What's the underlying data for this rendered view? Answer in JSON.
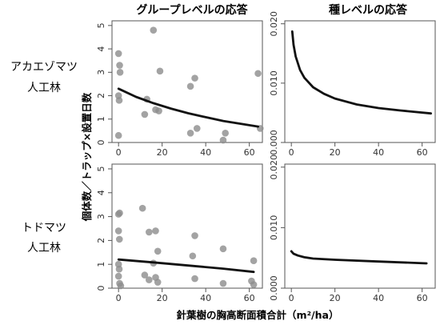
{
  "column_titles": [
    "グループレベルの応答",
    "種レベルの応答"
  ],
  "row_labels": [
    {
      "line1": "アカエゾマツ",
      "line2": "人工林"
    },
    {
      "line1": "トドマツ",
      "line2": "人工林"
    }
  ],
  "ylabel": "個体数／トラップ×設置日数",
  "xlabel": "針葉樹の胸高断面積合計（m²/ha）",
  "colors": {
    "point": "#8c8c8c",
    "line": "#111111",
    "axis": "#555555"
  },
  "chart_data": [
    {
      "type": "scatter",
      "row": 0,
      "col": 0,
      "xlim": [
        -3,
        66
      ],
      "ylim": [
        0,
        5.2
      ],
      "xticks": [
        0,
        20,
        40,
        60
      ],
      "yticks": [
        0,
        1,
        2,
        3,
        4,
        5
      ],
      "points": [
        {
          "x": 0,
          "y": 3.8
        },
        {
          "x": 0.5,
          "y": 3.3
        },
        {
          "x": 0.7,
          "y": 3.0
        },
        {
          "x": 0,
          "y": 2.0
        },
        {
          "x": 0.3,
          "y": 1.8
        },
        {
          "x": 0,
          "y": 0.3
        },
        {
          "x": 12,
          "y": 1.2
        },
        {
          "x": 13,
          "y": 1.85
        },
        {
          "x": 16,
          "y": 4.8
        },
        {
          "x": 17,
          "y": 1.4
        },
        {
          "x": 19,
          "y": 3.05
        },
        {
          "x": 18.5,
          "y": 1.35
        },
        {
          "x": 33,
          "y": 2.4
        },
        {
          "x": 35,
          "y": 2.75
        },
        {
          "x": 33,
          "y": 0.4
        },
        {
          "x": 36,
          "y": 0.6
        },
        {
          "x": 48,
          "y": 0.1
        },
        {
          "x": 49,
          "y": 0.4
        },
        {
          "x": 64,
          "y": 2.95
        },
        {
          "x": 65,
          "y": 0.6
        }
      ],
      "curve": [
        {
          "x": 0,
          "y": 2.3
        },
        {
          "x": 8,
          "y": 1.95
        },
        {
          "x": 16,
          "y": 1.68
        },
        {
          "x": 24,
          "y": 1.45
        },
        {
          "x": 32,
          "y": 1.25
        },
        {
          "x": 40,
          "y": 1.08
        },
        {
          "x": 48,
          "y": 0.92
        },
        {
          "x": 56,
          "y": 0.8
        },
        {
          "x": 64,
          "y": 0.68
        }
      ]
    },
    {
      "type": "line",
      "row": 0,
      "col": 1,
      "xlim": [
        -3,
        66
      ],
      "ylim": [
        0,
        0.0205
      ],
      "xticks": [
        0,
        20,
        40,
        60
      ],
      "yticks": [
        0.0,
        0.01,
        0.02
      ],
      "ytick_labels": [
        "0.000",
        "0.010",
        "0.020"
      ],
      "curve": [
        {
          "x": 0.4,
          "y": 0.0187
        },
        {
          "x": 1,
          "y": 0.0165
        },
        {
          "x": 2,
          "y": 0.0145
        },
        {
          "x": 4,
          "y": 0.0122
        },
        {
          "x": 6,
          "y": 0.0109
        },
        {
          "x": 10,
          "y": 0.0093
        },
        {
          "x": 15,
          "y": 0.0082
        },
        {
          "x": 20,
          "y": 0.0074
        },
        {
          "x": 30,
          "y": 0.0064
        },
        {
          "x": 40,
          "y": 0.0058
        },
        {
          "x": 50,
          "y": 0.0054
        },
        {
          "x": 64,
          "y": 0.0049
        }
      ]
    },
    {
      "type": "scatter",
      "row": 1,
      "col": 0,
      "xlim": [
        -3,
        66
      ],
      "ylim": [
        0,
        5.2
      ],
      "xticks": [
        0,
        20,
        40,
        60
      ],
      "yticks": [
        0,
        1,
        2,
        3,
        4,
        5
      ],
      "points": [
        {
          "x": 0,
          "y": 3.1
        },
        {
          "x": 0.5,
          "y": 3.15
        },
        {
          "x": 0,
          "y": 2.4
        },
        {
          "x": 0.4,
          "y": 2.05
        },
        {
          "x": 0,
          "y": 1.0
        },
        {
          "x": 0.3,
          "y": 0.8
        },
        {
          "x": 0,
          "y": 0.5
        },
        {
          "x": 0.5,
          "y": 0.2
        },
        {
          "x": 1,
          "y": 0.1
        },
        {
          "x": 11,
          "y": 3.35
        },
        {
          "x": 14,
          "y": 2.35
        },
        {
          "x": 17,
          "y": 2.4
        },
        {
          "x": 16,
          "y": 1.05
        },
        {
          "x": 12,
          "y": 0.55
        },
        {
          "x": 14,
          "y": 0.35
        },
        {
          "x": 17,
          "y": 0.45
        },
        {
          "x": 18,
          "y": 0.25
        },
        {
          "x": 18,
          "y": 1.55
        },
        {
          "x": 35,
          "y": 2.2
        },
        {
          "x": 34,
          "y": 1.35
        },
        {
          "x": 35,
          "y": 0.4
        },
        {
          "x": 48,
          "y": 1.65
        },
        {
          "x": 48,
          "y": 0.2
        },
        {
          "x": 62,
          "y": 1.15
        },
        {
          "x": 61,
          "y": 0.3
        },
        {
          "x": 62,
          "y": 0.15
        }
      ],
      "curve": [
        {
          "x": 0,
          "y": 1.2
        },
        {
          "x": 16,
          "y": 1.08
        },
        {
          "x": 32,
          "y": 0.95
        },
        {
          "x": 48,
          "y": 0.82
        },
        {
          "x": 62,
          "y": 0.68
        }
      ]
    },
    {
      "type": "line",
      "row": 1,
      "col": 1,
      "xlim": [
        -3,
        66
      ],
      "ylim": [
        0,
        0.0205
      ],
      "xticks": [
        0,
        20,
        40,
        60
      ],
      "yticks": [
        0.0,
        0.01,
        0.02
      ],
      "ytick_labels": [
        "0.000",
        "0.010",
        "0.020"
      ],
      "curve": [
        {
          "x": 0,
          "y": 0.0061
        },
        {
          "x": 1,
          "y": 0.0057
        },
        {
          "x": 3,
          "y": 0.0054
        },
        {
          "x": 6,
          "y": 0.0051
        },
        {
          "x": 10,
          "y": 0.0049
        },
        {
          "x": 20,
          "y": 0.0047
        },
        {
          "x": 40,
          "y": 0.0044
        },
        {
          "x": 62,
          "y": 0.0041
        }
      ]
    }
  ]
}
